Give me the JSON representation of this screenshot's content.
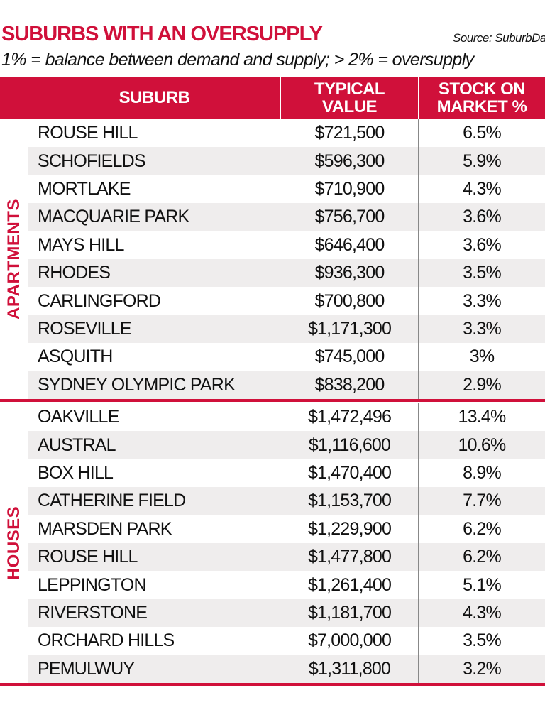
{
  "header": {
    "title": "SUBURBS WITH AN OVERSUPPLY",
    "source": "Source: SuburbData",
    "subtitle": "1% = balance between demand and supply; > 2% = oversupply"
  },
  "table": {
    "columns": [
      "SUBURB",
      "TYPICAL VALUE",
      "STOCK ON MARKET %"
    ],
    "groups": [
      {
        "label": "APARTMENTS",
        "rows": [
          [
            "ROUSE HILL",
            "$721,500",
            "6.5%"
          ],
          [
            "SCHOFIELDS",
            "$596,300",
            "5.9%"
          ],
          [
            "MORTLAKE",
            "$710,900",
            "4.3%"
          ],
          [
            "MACQUARIE PARK",
            "$756,700",
            "3.6%"
          ],
          [
            "MAYS HILL",
            "$646,400",
            "3.6%"
          ],
          [
            "RHODES",
            "$936,300",
            "3.5%"
          ],
          [
            "CARLINGFORD",
            "$700,800",
            "3.3%"
          ],
          [
            "ROSEVILLE",
            "$1,171,300",
            "3.3%"
          ],
          [
            "ASQUITH",
            "$745,000",
            "3%"
          ],
          [
            "SYDNEY OLYMPIC PARK",
            "$838,200",
            "2.9%"
          ]
        ]
      },
      {
        "label": "HOUSES",
        "rows": [
          [
            "OAKVILLE",
            "$1,472,496",
            "13.4%"
          ],
          [
            "AUSTRAL",
            "$1,116,600",
            "10.6%"
          ],
          [
            "BOX HILL",
            "$1,470,400",
            "8.9%"
          ],
          [
            "CATHERINE FIELD",
            "$1,153,700",
            "7.7%"
          ],
          [
            "MARSDEN PARK",
            "$1,229,900",
            "6.2%"
          ],
          [
            "ROUSE HILL",
            "$1,477,800",
            "6.2%"
          ],
          [
            "LEPPINGTON",
            "$1,261,400",
            "5.1%"
          ],
          [
            "RIVERSTONE",
            "$1,181,700",
            "4.3%"
          ],
          [
            "ORCHARD HILLS",
            "$7,000,000",
            "3.5%"
          ],
          [
            "PEMULWUY",
            "$1,311,800",
            "3.2%"
          ]
        ]
      }
    ]
  }
}
